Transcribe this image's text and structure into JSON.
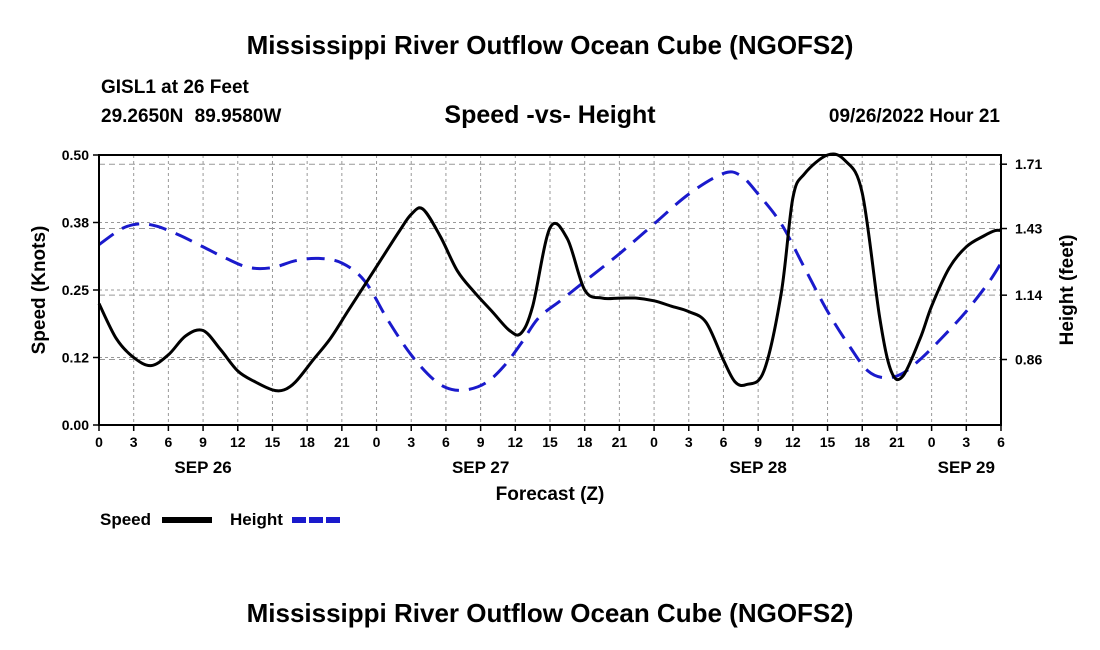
{
  "title": "Mississippi River Outflow Ocean Cube (NGOFS2)",
  "station": "GISL1 at 26 Feet",
  "coordinates": "29.2650N 89.9580W",
  "subtitle": "Speed -vs- Height",
  "datetime": "09/26/2022 Hour 21",
  "footer_title": "Mississippi River Outflow Ocean Cube (NGOFS2)",
  "colors": {
    "speed": "#000000",
    "height": "#1a1acc",
    "grid": "#999999"
  },
  "chart_data": {
    "type": "line",
    "title": "Speed -vs- Height",
    "xlabel": "Forecast (Z)",
    "ylabel": "Speed (Knots)",
    "y2label": "Height (feet)",
    "x_range": [
      0,
      78
    ],
    "x_tick_step_hours": 3,
    "x_tick_labels": [
      "0",
      "3",
      "6",
      "9",
      "12",
      "15",
      "18",
      "21",
      "0",
      "3",
      "6",
      "9",
      "12",
      "15",
      "18",
      "21",
      "0",
      "3",
      "6",
      "9",
      "12",
      "15",
      "18",
      "21",
      "0",
      "3",
      "6"
    ],
    "date_labels": [
      {
        "hour": 9,
        "label": "SEP 26"
      },
      {
        "hour": 33,
        "label": "SEP 27"
      },
      {
        "hour": 57,
        "label": "SEP 28"
      },
      {
        "hour": 75,
        "label": "SEP 29"
      }
    ],
    "y_left": {
      "min": 0,
      "max": 0.5,
      "ticks": [
        0.0,
        0.125,
        0.25,
        0.375,
        0.5
      ],
      "tick_labels": [
        "0.00",
        "0.12",
        "0.25",
        "0.38",
        "0.50"
      ]
    },
    "y_right": {
      "min": 0.575,
      "max": 1.75,
      "ticks": [
        0.86,
        1.14,
        1.43,
        1.71
      ],
      "tick_labels": [
        "0.86",
        "1.14",
        "1.43",
        "1.71"
      ]
    },
    "grid": true,
    "legend": "bottom-left",
    "series": [
      {
        "name": "Speed",
        "axis": "left",
        "style": "solid",
        "x": [
          0,
          1.5,
          3,
          4.5,
          6,
          7.5,
          9,
          10.5,
          12,
          13.5,
          15,
          16,
          17,
          18.5,
          20,
          21.5,
          23,
          24.5,
          26,
          27,
          28,
          29.5,
          31,
          32.5,
          34,
          35.5,
          36.5,
          37.5,
          39,
          40.5,
          42,
          43.5,
          45,
          46.5,
          48,
          49.5,
          51,
          52.5,
          54,
          55,
          56,
          57.5,
          59,
          60,
          61,
          63,
          64.5,
          66,
          67.5,
          68.5,
          69.5,
          71,
          72,
          73.5,
          75,
          76.5,
          77.5,
          78
        ],
        "values": [
          0.225,
          0.16,
          0.125,
          0.11,
          0.13,
          0.165,
          0.175,
          0.14,
          0.1,
          0.08,
          0.065,
          0.065,
          0.08,
          0.12,
          0.16,
          0.21,
          0.26,
          0.31,
          0.36,
          0.39,
          0.4,
          0.35,
          0.285,
          0.245,
          0.21,
          0.175,
          0.17,
          0.22,
          0.365,
          0.345,
          0.25,
          0.235,
          0.235,
          0.235,
          0.23,
          0.22,
          0.21,
          0.19,
          0.12,
          0.08,
          0.075,
          0.1,
          0.245,
          0.42,
          0.465,
          0.5,
          0.49,
          0.43,
          0.2,
          0.1,
          0.09,
          0.16,
          0.22,
          0.29,
          0.33,
          0.35,
          0.36,
          0.36
        ]
      },
      {
        "name": "Height",
        "axis": "right",
        "style": "dashed",
        "x": [
          0,
          2,
          3.5,
          5,
          7,
          9,
          11,
          13,
          15,
          17,
          19,
          21,
          23,
          25,
          27,
          29,
          30.5,
          32,
          33.5,
          35,
          36.5,
          38,
          40,
          42,
          45,
          48,
          51,
          54,
          55.5,
          57,
          59,
          61,
          63,
          65,
          66.5,
          68,
          69.5,
          71,
          73,
          75,
          77,
          78
        ],
        "values": [
          1.36,
          1.43,
          1.45,
          1.44,
          1.4,
          1.35,
          1.3,
          1.26,
          1.26,
          1.29,
          1.3,
          1.28,
          1.2,
          1.03,
          0.88,
          0.77,
          0.73,
          0.73,
          0.76,
          0.83,
          0.93,
          1.04,
          1.12,
          1.2,
          1.32,
          1.45,
          1.58,
          1.67,
          1.66,
          1.58,
          1.45,
          1.26,
          1.07,
          0.91,
          0.81,
          0.78,
          0.8,
          0.86,
          0.96,
          1.07,
          1.2,
          1.28
        ]
      }
    ]
  }
}
